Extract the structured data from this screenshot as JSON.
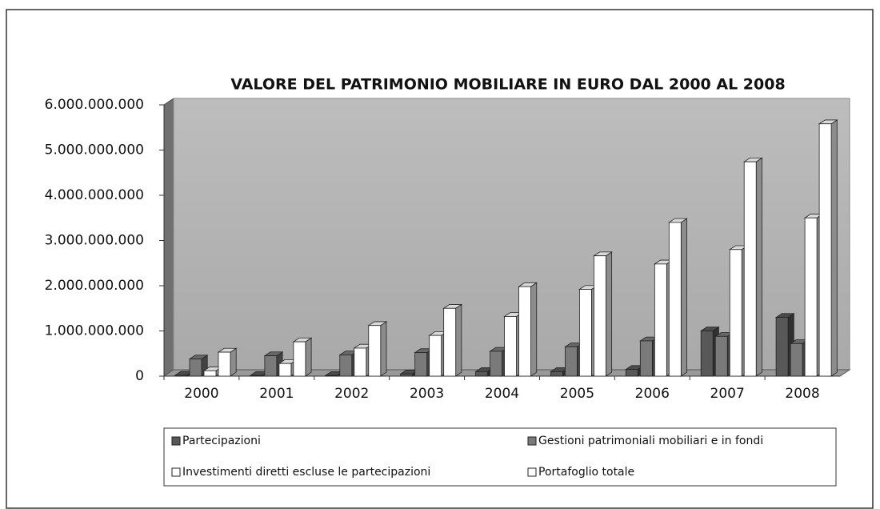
{
  "chart_data": {
    "type": "bar3d",
    "title": "VALORE DEL PATRIMONIO MOBILIARE IN EURO DAL 2000 AL 2008",
    "categories": [
      "2000",
      "2001",
      "2002",
      "2003",
      "2004",
      "2005",
      "2006",
      "2007",
      "2008"
    ],
    "series": [
      {
        "name": "Partecipazioni",
        "color": "#585858",
        "values": [
          20000000,
          15000000,
          15000000,
          50000000,
          100000000,
          100000000,
          150000000,
          1000000000,
          1300000000
        ]
      },
      {
        "name": "Gestioni patrimoniali mobiliari e in fondi",
        "color": "#7a7a7a",
        "values": [
          380000000,
          450000000,
          470000000,
          520000000,
          550000000,
          650000000,
          780000000,
          880000000,
          720000000
        ]
      },
      {
        "name": "Investimenti diretti escluse le partecipazioni",
        "color": "#ffffff",
        "values": [
          120000000,
          280000000,
          620000000,
          900000000,
          1320000000,
          1920000000,
          2480000000,
          2800000000,
          3500000000
        ]
      },
      {
        "name": "Portafoglio totale",
        "color": "#ffffff",
        "values": [
          530000000,
          760000000,
          1120000000,
          1500000000,
          1980000000,
          2660000000,
          3400000000,
          4740000000,
          5580000000
        ]
      }
    ],
    "ylim": [
      0,
      6000000000
    ],
    "yticks": [
      0,
      {
        "value": 1000000000,
        "label": "1.000.000.000"
      },
      {
        "value": 2000000000,
        "label": "2.000.000.000"
      },
      {
        "value": 3000000000,
        "label": "3.000.000.000"
      },
      {
        "value": 4000000000,
        "label": "4.000.000.000"
      },
      {
        "value": 5000000000,
        "label": "5.000.000.000"
      },
      {
        "value": 6000000000,
        "label": "6.000.000.000"
      }
    ],
    "grid": false,
    "legend": "bottom"
  }
}
